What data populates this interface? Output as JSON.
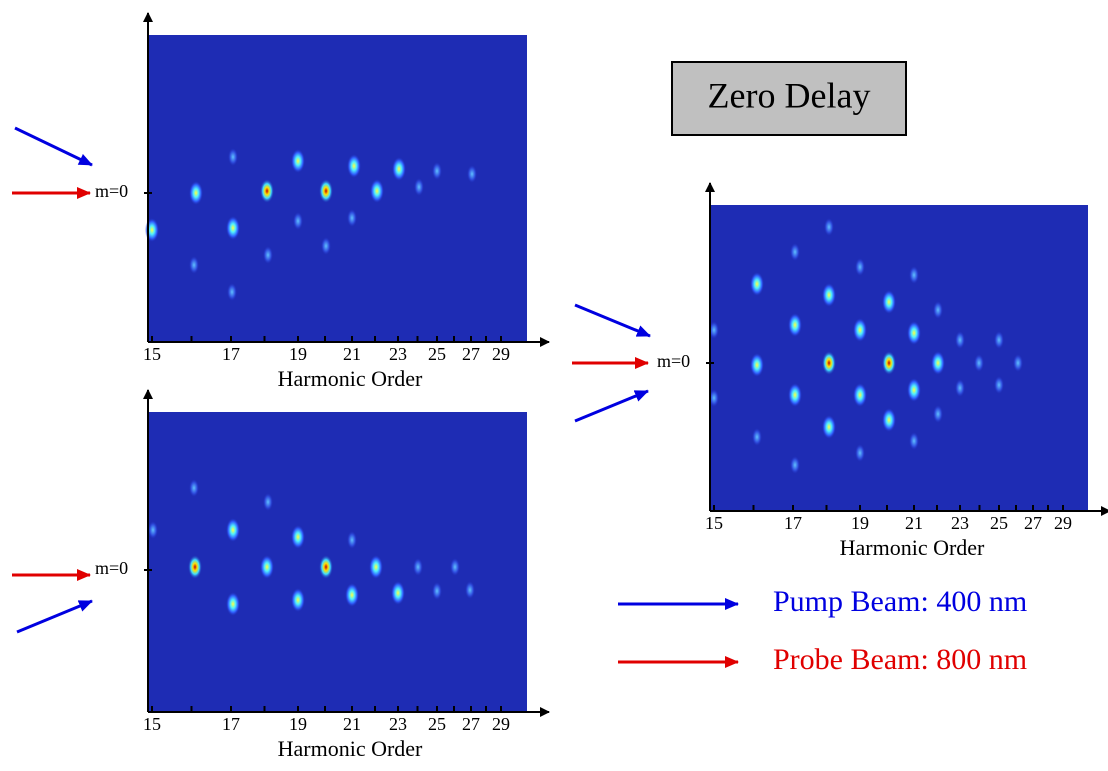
{
  "panels": [
    {
      "tick_labels": [
        15,
        17,
        19,
        21,
        23,
        25,
        27,
        29
      ],
      "axis_label": "Harmonic Order",
      "marker_label": "m=0"
    },
    {
      "tick_labels": [
        15,
        17,
        19,
        21,
        23,
        25,
        27,
        29
      ],
      "axis_label": "Harmonic Order",
      "marker_label": "m=0"
    },
    {
      "tick_labels": [
        15,
        17,
        19,
        21,
        23,
        25,
        27,
        29
      ],
      "axis_label": "Harmonic Order",
      "marker_label": "m=0"
    }
  ],
  "box": {
    "label": "Zero Delay"
  },
  "legend": [
    {
      "label": "Pump Beam: 400 nm"
    },
    {
      "label": "Probe Beam: 800 nm"
    }
  ]
}
